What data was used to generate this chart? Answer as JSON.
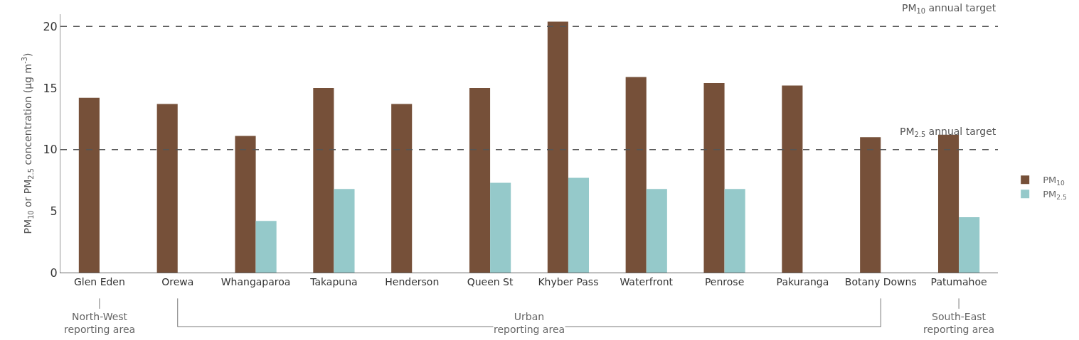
{
  "chart_data": {
    "type": "bar",
    "ylabel": "PM$_{10}$ or PM$_{2.5}$ concentration (µg m$^{-3}$)",
    "categories": [
      "Glen Eden",
      "Orewa",
      "Whangaparoa",
      "Takapuna",
      "Henderson",
      "Queen St",
      "Khyber Pass",
      "Waterfront",
      "Penrose",
      "Pakuranga",
      "Botany Downs",
      "Patumahoe"
    ],
    "series": [
      {
        "name": "PM$_{10}$",
        "color": "#765039",
        "values": [
          14.2,
          13.7,
          11.1,
          15.0,
          13.7,
          15.0,
          20.4,
          15.9,
          15.4,
          15.2,
          11.0,
          11.2
        ]
      },
      {
        "name": "PM$_{2.5}$",
        "color": "#95c9ca",
        "values": [
          null,
          null,
          4.2,
          6.8,
          null,
          7.3,
          7.7,
          6.8,
          6.8,
          null,
          null,
          4.5
        ]
      }
    ],
    "ylim": [
      0,
      21
    ],
    "yticks": [
      0,
      5,
      10,
      15,
      20
    ],
    "grid": false,
    "legend": "right",
    "ref_lines": [
      {
        "axis": "y",
        "value": 20,
        "label": "PM$_{10}$ annual target",
        "color": "#555555",
        "line_style": "dashed"
      },
      {
        "axis": "y",
        "value": 10,
        "label": "PM$_{2.5}$ annual target",
        "color": "#555555",
        "line_style": "dashed"
      }
    ],
    "annotations": [
      "North-West\nreporting area",
      "Urban\nreporting area",
      "South-East\nreporting area"
    ]
  }
}
